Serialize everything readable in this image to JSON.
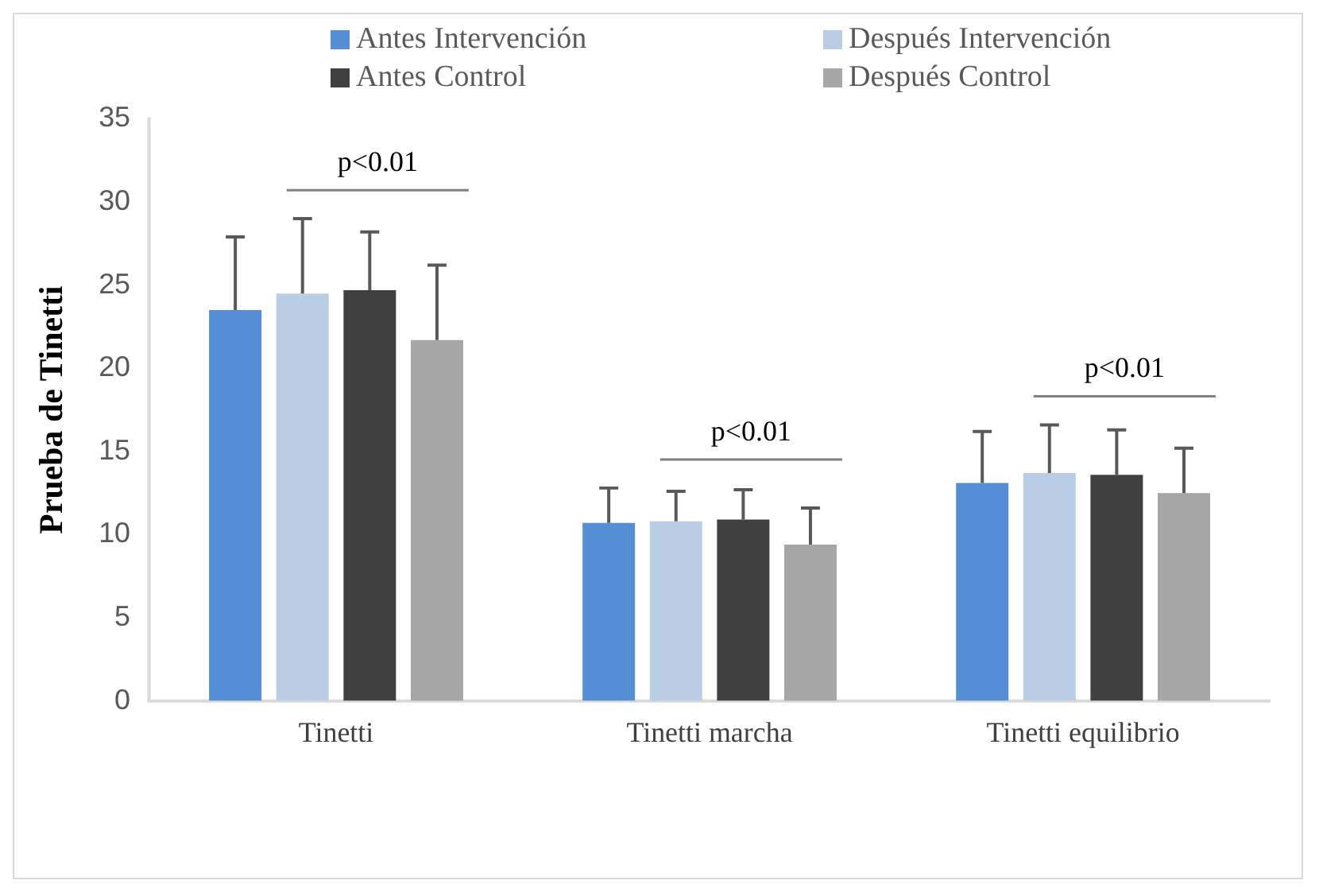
{
  "chart_data": {
    "type": "bar",
    "ylabel": "Prueba de Tinetti",
    "categories": [
      "Tinetti",
      "Tinetti marcha",
      "Tinetti equilibrio"
    ],
    "series": [
      {
        "name": "Antes Intervención",
        "color": "#558ed5",
        "values": [
          23.5,
          10.7,
          13.1
        ],
        "errors": [
          4.4,
          2.1,
          3.1
        ]
      },
      {
        "name": "Después Intervención",
        "color": "#b9cde5",
        "values": [
          24.5,
          10.8,
          13.7
        ],
        "errors": [
          4.5,
          1.8,
          2.9
        ]
      },
      {
        "name": "Antes Control",
        "color": "#404040",
        "values": [
          24.7,
          10.9,
          13.6
        ],
        "errors": [
          3.5,
          1.8,
          2.7
        ]
      },
      {
        "name": "Después Control",
        "color": "#a6a6a6",
        "values": [
          21.7,
          9.4,
          12.5
        ],
        "errors": [
          4.5,
          2.2,
          2.7
        ]
      }
    ],
    "ylim": [
      0,
      35
    ],
    "yticks": [
      0,
      5,
      10,
      15,
      20,
      25,
      30,
      35
    ],
    "grid": false,
    "legend": "top",
    "annotations": [
      "p<0.01",
      "p<0.01",
      "p<0.01"
    ]
  }
}
